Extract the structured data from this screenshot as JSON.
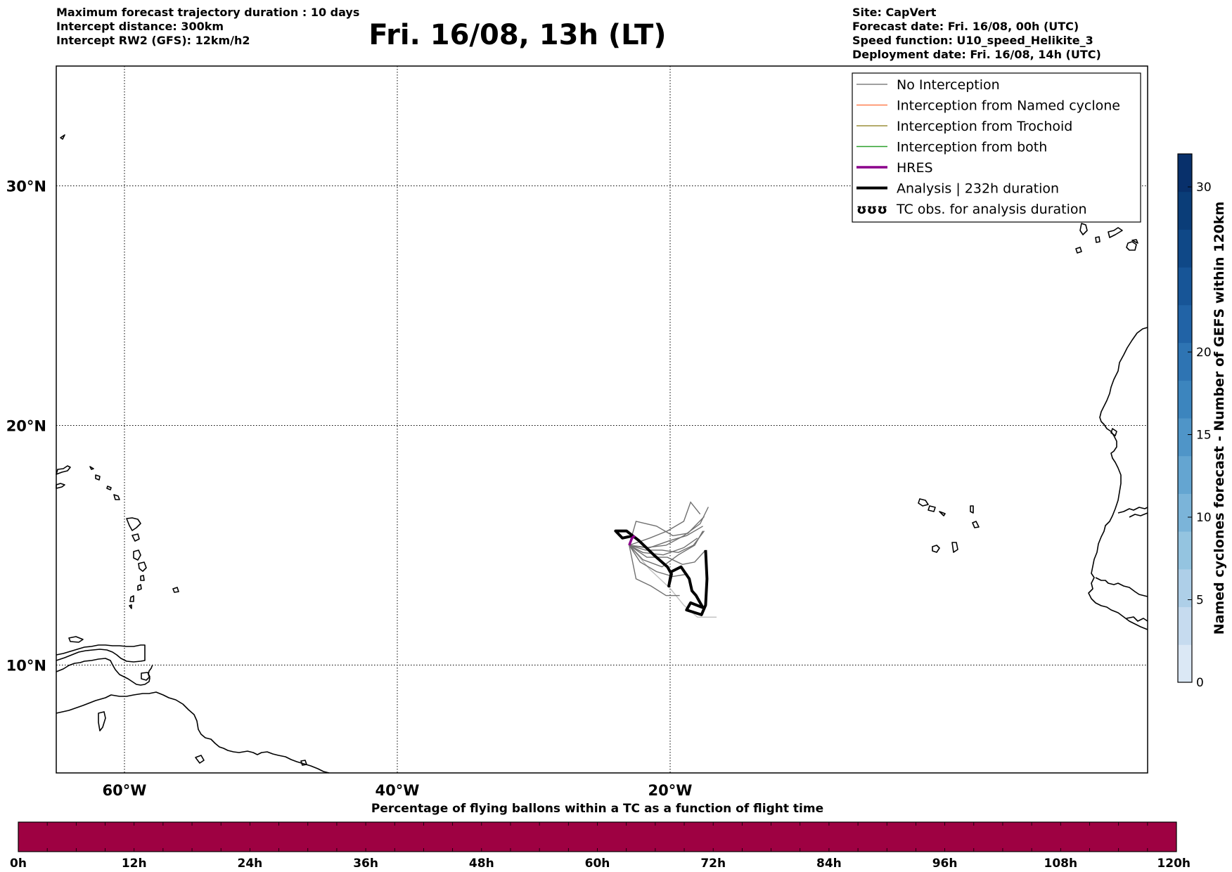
{
  "header": {
    "left_lines": [
      "Maximum forecast trajectory duration : 10 days",
      "Intercept distance: 300km",
      "Intercept RW2 (GFS):  12km/h2"
    ],
    "title": "Fri. 16/08, 13h (LT)",
    "right_lines": [
      "Site: CapVert",
      "Forecast date: Fri. 16/08, 00h (UTC)",
      "Speed function: U10_speed_Helikite_3",
      "Deployment date: Fri. 16/08, 14h (UTC)"
    ]
  },
  "map": {
    "lon_range": [
      -65,
      15
    ],
    "lat_range": [
      5.5,
      35
    ],
    "lon_ticks": [
      {
        "value": -60,
        "label": "60°W"
      },
      {
        "value": -40,
        "label": "40°W"
      },
      {
        "value": -20,
        "label": "20°W"
      }
    ],
    "lat_ticks": [
      {
        "value": 30,
        "label": "30°N"
      },
      {
        "value": 20,
        "label": "20°N"
      },
      {
        "value": 10,
        "label": "10°N"
      }
    ],
    "grid": true
  },
  "legend": {
    "placement": "top-right",
    "entries": [
      {
        "label": "No Interception",
        "color": "#808080",
        "style": "thin"
      },
      {
        "label": "Interception from Named cyclone",
        "color": "#ff7f50",
        "style": "thin"
      },
      {
        "label": "Interception from Trochoid",
        "color": "#9b8f3a",
        "style": "thin"
      },
      {
        "label": "Interception from both",
        "color": "#2ca02c",
        "style": "thin"
      },
      {
        "label": "HRES",
        "color": "#8b008b",
        "style": "medium"
      },
      {
        "label": "Analysis | 232h duration",
        "color": "#000000",
        "style": "thick"
      },
      {
        "label": "TC obs. for analysis duration",
        "color": "#000000",
        "style": "symbol",
        "symbol": "ʊʊʊ"
      }
    ]
  },
  "colorbar_right": {
    "title": "Named cyclones forecast - Number of GEFS within 120km",
    "range": [
      0,
      32
    ],
    "ticks": [
      {
        "value": 0,
        "label": "0"
      },
      {
        "value": 5,
        "label": "5"
      },
      {
        "value": 10,
        "label": "10"
      },
      {
        "value": 15,
        "label": "15"
      },
      {
        "value": 20,
        "label": "20"
      },
      {
        "value": 30,
        "label": "30"
      }
    ],
    "colors": [
      "#dbe8f5",
      "#c6dbef",
      "#aecfe8",
      "#94c4e0",
      "#7bb4d9",
      "#64a5d1",
      "#4f95c8",
      "#3c85be",
      "#2e74b3",
      "#2163a6",
      "#175597",
      "#0f4887",
      "#0a3d78",
      "#08306b"
    ]
  },
  "colorbar_bottom": {
    "title": "Percentage of flying ballons within a TC as a function of flight time",
    "color": "#9e0142",
    "range_hours": [
      0,
      120
    ],
    "ticks": [
      {
        "value": 0,
        "label": "0h"
      },
      {
        "value": 12,
        "label": "12h"
      },
      {
        "value": 24,
        "label": "24h"
      },
      {
        "value": 36,
        "label": "36h"
      },
      {
        "value": 48,
        "label": "48h"
      },
      {
        "value": 60,
        "label": "60h"
      },
      {
        "value": 72,
        "label": "72h"
      },
      {
        "value": 84,
        "label": "84h"
      },
      {
        "value": 96,
        "label": "96h"
      },
      {
        "value": 108,
        "label": "108h"
      },
      {
        "value": 120,
        "label": "120h"
      }
    ]
  },
  "tracks": {
    "ensemble": [
      [
        [
          -23.0,
          15.0
        ],
        [
          -22.0,
          14.7
        ],
        [
          -20.5,
          14.6
        ],
        [
          -19.0,
          14.9
        ],
        [
          -18.0,
          15.3
        ]
      ],
      [
        [
          -23.0,
          15.0
        ],
        [
          -21.8,
          14.9
        ],
        [
          -20.3,
          15.0
        ],
        [
          -19.0,
          15.4
        ],
        [
          -17.8,
          15.9
        ],
        [
          -17.2,
          16.6
        ]
      ],
      [
        [
          -23.0,
          15.0
        ],
        [
          -21.5,
          15.3
        ],
        [
          -20.2,
          15.6
        ],
        [
          -19.0,
          16.0
        ],
        [
          -18.5,
          16.8
        ],
        [
          -17.8,
          16.3
        ]
      ],
      [
        [
          -23.0,
          15.0
        ],
        [
          -22.5,
          16.0
        ],
        [
          -21.0,
          15.8
        ],
        [
          -19.8,
          15.4
        ],
        [
          -18.7,
          15.5
        ],
        [
          -17.5,
          16.2
        ]
      ],
      [
        [
          -23.0,
          15.0
        ],
        [
          -22.0,
          14.4
        ],
        [
          -20.6,
          14.1
        ],
        [
          -19.4,
          14.6
        ],
        [
          -18.2,
          15.0
        ],
        [
          -17.6,
          15.6
        ]
      ],
      [
        [
          -23.0,
          15.0
        ],
        [
          -21.7,
          14.5
        ],
        [
          -20.2,
          14.5
        ],
        [
          -19.1,
          14.2
        ],
        [
          -18.2,
          14.3
        ],
        [
          -17.4,
          14.8
        ]
      ],
      [
        [
          -23.0,
          15.0
        ],
        [
          -22.2,
          14.3
        ],
        [
          -21.0,
          13.9
        ],
        [
          -19.8,
          13.7
        ],
        [
          -18.7,
          13.8
        ]
      ],
      [
        [
          -23.0,
          15.0
        ],
        [
          -22.5,
          13.6
        ],
        [
          -21.4,
          13.3
        ],
        [
          -20.3,
          12.9
        ],
        [
          -19.3,
          12.9
        ]
      ],
      [
        [
          -23.0,
          15.0
        ],
        [
          -21.8,
          14.8
        ],
        [
          -20.6,
          14.8
        ],
        [
          -19.4,
          14.7
        ],
        [
          -18.3,
          15.0
        ],
        [
          -17.5,
          15.6
        ]
      ],
      [
        [
          -23.0,
          15.0
        ],
        [
          -21.5,
          14.9
        ],
        [
          -20.0,
          15.2
        ],
        [
          -18.8,
          15.4
        ],
        [
          -17.6,
          15.8
        ]
      ]
    ],
    "ensemble_light": [
      [
        [
          -23.0,
          15.0
        ],
        [
          -21.5,
          14.0
        ],
        [
          -20.0,
          13.2
        ],
        [
          -19.0,
          12.5
        ],
        [
          -18.0,
          12.0
        ],
        [
          -16.6,
          12.0
        ]
      ]
    ],
    "hres": [
      [
        -23.0,
        15.0
      ],
      [
        -22.8,
        15.3
      ],
      [
        -22.6,
        15.4
      ]
    ],
    "analysis": [
      [
        -22.7,
        15.4
      ],
      [
        -23.5,
        15.3
      ],
      [
        -24.0,
        15.6
      ],
      [
        -23.2,
        15.6
      ],
      [
        -22.3,
        15.2
      ],
      [
        -21.2,
        14.6
      ],
      [
        -20.2,
        14.1
      ],
      [
        -19.9,
        13.8
      ],
      [
        -20.1,
        13.3
      ],
      [
        -19.9,
        13.9
      ],
      [
        -19.2,
        14.1
      ],
      [
        -18.6,
        13.6
      ],
      [
        -18.4,
        13.1
      ],
      [
        -18.1,
        12.9
      ],
      [
        -17.6,
        12.4
      ],
      [
        -18.5,
        12.6
      ],
      [
        -18.8,
        12.3
      ],
      [
        -17.7,
        12.1
      ],
      [
        -17.4,
        12.5
      ],
      [
        -17.3,
        13.6
      ],
      [
        -17.4,
        14.8
      ]
    ]
  }
}
